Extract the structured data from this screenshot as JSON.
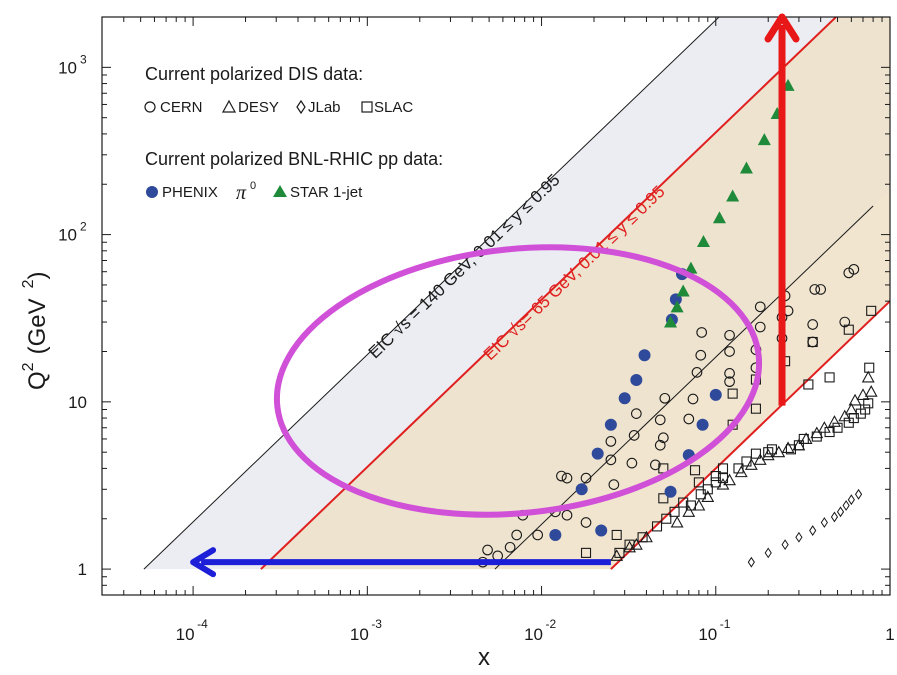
{
  "chart_data": {
    "type": "scatter",
    "xscale": "log",
    "yscale": "log",
    "xlim": [
      3e-05,
      1
    ],
    "ylim": [
      0.7,
      2000
    ],
    "xlabel": "x",
    "ylabel_main": "Q",
    "ylabel_sup": "2",
    "ylabel_unit": "(GeV",
    "ylabel_unit_sup": "2",
    "ylabel_close": ")",
    "x_ticks": [
      {
        "value": 0.0001,
        "base": "10",
        "exp": "-4"
      },
      {
        "value": 0.001,
        "base": "10",
        "exp": "-3"
      },
      {
        "value": 0.01,
        "base": "10",
        "exp": "-2"
      },
      {
        "value": 0.1,
        "base": "10",
        "exp": "-1"
      },
      {
        "value": 1,
        "base": "1",
        "exp": ""
      }
    ],
    "y_ticks": [
      {
        "value": 1,
        "base": "1",
        "exp": ""
      },
      {
        "value": 10,
        "base": "10",
        "exp": ""
      },
      {
        "value": 100,
        "base": "10",
        "exp": "2"
      },
      {
        "value": 1000,
        "base": "10",
        "exp": "3"
      }
    ],
    "legend": {
      "dis_title": "Current polarized DIS data:",
      "dis_items": [
        "CERN",
        "DESY",
        "JLab",
        "SLAC"
      ],
      "rhic_title": "Current polarized BNL-RHIC pp data:",
      "phenix_label": "PHENIX",
      "pi_label": "π",
      "pi_sup": "0",
      "star_label": "STAR 1-jet"
    },
    "bands": [
      {
        "label": "EIC  √s = 140 GeV, 0.01 ≤ y ≤ 0.95",
        "x_left": [
          5.22e-05,
          0.00267
        ],
        "x_right": [
          0.0054,
          0.278
        ],
        "color": "#ebedf2",
        "line": "#1a1a1a"
      },
      {
        "label": "EIC  √s= 65 GeV, 0.01 ≤ y ≤ 0.95",
        "x_left": [
          0.000245,
          0.0125
        ],
        "x_right": [
          0.025,
          1.3
        ],
        "color": "#efe0c8",
        "line": "#e02020"
      }
    ],
    "series": [
      {
        "name": "CERN",
        "marker": "circle",
        "points": [
          [
            0.0046,
            1.1
          ],
          [
            0.0049,
            1.3
          ],
          [
            0.0056,
            1.2
          ],
          [
            0.0066,
            1.35
          ],
          [
            0.0072,
            1.6
          ],
          [
            0.0078,
            2.1
          ],
          [
            0.0095,
            1.6
          ],
          [
            0.012,
            2.2
          ],
          [
            0.013,
            3.6
          ],
          [
            0.014,
            3.5
          ],
          [
            0.014,
            2.1
          ],
          [
            0.018,
            1.9
          ],
          [
            0.018,
            3.5
          ],
          [
            0.025,
            4.5
          ],
          [
            0.025,
            5.8
          ],
          [
            0.026,
            3.2
          ],
          [
            0.033,
            4.3
          ],
          [
            0.034,
            6.3
          ],
          [
            0.035,
            8.5
          ],
          [
            0.045,
            4.2
          ],
          [
            0.048,
            5.5
          ],
          [
            0.048,
            7.8
          ],
          [
            0.05,
            6.1
          ],
          [
            0.051,
            10.5
          ],
          [
            0.07,
            7.9
          ],
          [
            0.074,
            10.4
          ],
          [
            0.078,
            15
          ],
          [
            0.082,
            19
          ],
          [
            0.083,
            26
          ],
          [
            0.12,
            14.8
          ],
          [
            0.12,
            20
          ],
          [
            0.12,
            25
          ],
          [
            0.12,
            13.2
          ],
          [
            0.17,
            16
          ],
          [
            0.17,
            20.5
          ],
          [
            0.18,
            28
          ],
          [
            0.18,
            37
          ],
          [
            0.24,
            24
          ],
          [
            0.24,
            32
          ],
          [
            0.25,
            43
          ],
          [
            0.26,
            35
          ],
          [
            0.36,
            22.8
          ],
          [
            0.36,
            29
          ],
          [
            0.37,
            47
          ],
          [
            0.4,
            47
          ],
          [
            0.55,
            30
          ],
          [
            0.58,
            59
          ],
          [
            0.62,
            62
          ]
        ]
      },
      {
        "name": "DESY",
        "marker": "triangle",
        "points": [
          [
            0.027,
            1.2
          ],
          [
            0.032,
            1.35
          ],
          [
            0.035,
            1.4
          ],
          [
            0.04,
            1.55
          ],
          [
            0.06,
            1.9
          ],
          [
            0.07,
            2.2
          ],
          [
            0.08,
            2.4
          ],
          [
            0.09,
            2.7
          ],
          [
            0.11,
            3.2
          ],
          [
            0.12,
            3.4
          ],
          [
            0.14,
            3.8
          ],
          [
            0.16,
            4.2
          ],
          [
            0.18,
            4.5
          ],
          [
            0.2,
            4.8
          ],
          [
            0.23,
            5.0
          ],
          [
            0.26,
            5.3
          ],
          [
            0.3,
            5.5
          ],
          [
            0.33,
            6.0
          ],
          [
            0.38,
            6.5
          ],
          [
            0.42,
            7.0
          ],
          [
            0.48,
            7.6
          ],
          [
            0.55,
            8.2
          ],
          [
            0.6,
            9.0
          ],
          [
            0.63,
            10.2
          ],
          [
            0.7,
            11.0
          ],
          [
            0.75,
            14.0
          ],
          [
            0.78,
            11.5
          ]
        ]
      },
      {
        "name": "JLab",
        "marker": "diamond",
        "points": [
          [
            0.16,
            1.1
          ],
          [
            0.2,
            1.25
          ],
          [
            0.25,
            1.4
          ],
          [
            0.3,
            1.55
          ],
          [
            0.36,
            1.7
          ],
          [
            0.42,
            1.9
          ],
          [
            0.48,
            2.05
          ],
          [
            0.52,
            2.2
          ],
          [
            0.56,
            2.4
          ],
          [
            0.6,
            2.6
          ],
          [
            0.66,
            2.8
          ]
        ]
      },
      {
        "name": "SLAC",
        "marker": "square",
        "points": [
          [
            0.018,
            1.25
          ],
          [
            0.027,
            1.6
          ],
          [
            0.028,
            1.25
          ],
          [
            0.032,
            1.4
          ],
          [
            0.038,
            1.55
          ],
          [
            0.046,
            1.8
          ],
          [
            0.05,
            2.65
          ],
          [
            0.052,
            2.0
          ],
          [
            0.058,
            2.2
          ],
          [
            0.065,
            2.5
          ],
          [
            0.072,
            2.4
          ],
          [
            0.08,
            3.3
          ],
          [
            0.082,
            2.8
          ],
          [
            0.05,
            4.0
          ],
          [
            0.076,
            3.9
          ],
          [
            0.09,
            3.0
          ],
          [
            0.1,
            3.3
          ],
          [
            0.1,
            3.6
          ],
          [
            0.11,
            3.5
          ],
          [
            0.11,
            4.0
          ],
          [
            0.125,
            7.3
          ],
          [
            0.125,
            11.2
          ],
          [
            0.135,
            4.0
          ],
          [
            0.15,
            4.4
          ],
          [
            0.17,
            4.9
          ],
          [
            0.17,
            9.1
          ],
          [
            0.17,
            13.6
          ],
          [
            0.2,
            5.0
          ],
          [
            0.21,
            5.2
          ],
          [
            0.25,
            17.5
          ],
          [
            0.27,
            5.2
          ],
          [
            0.3,
            5.5
          ],
          [
            0.32,
            6.0
          ],
          [
            0.34,
            12.7
          ],
          [
            0.36,
            22.8
          ],
          [
            0.38,
            6.2
          ],
          [
            0.45,
            6.6
          ],
          [
            0.45,
            14.0
          ],
          [
            0.5,
            7.0
          ],
          [
            0.58,
            7.5
          ],
          [
            0.58,
            27
          ],
          [
            0.62,
            8.0
          ],
          [
            0.68,
            8.5
          ],
          [
            0.72,
            9.0
          ],
          [
            0.75,
            9.8
          ],
          [
            0.76,
            16
          ],
          [
            0.78,
            35
          ]
        ]
      },
      {
        "name": "PHENIX",
        "marker": "filled-circle",
        "color": "#2f4a9a",
        "points": [
          [
            0.012,
            1.6
          ],
          [
            0.022,
            1.7
          ],
          [
            0.017,
            3.0
          ],
          [
            0.021,
            4.9
          ],
          [
            0.025,
            7.3
          ],
          [
            0.03,
            10.5
          ],
          [
            0.035,
            13.5
          ],
          [
            0.039,
            19
          ],
          [
            0.055,
            2.9
          ],
          [
            0.056,
            31
          ],
          [
            0.059,
            41
          ],
          [
            0.064,
            58
          ],
          [
            0.07,
            4.8
          ],
          [
            0.084,
            7.3
          ],
          [
            0.1,
            11
          ]
        ]
      },
      {
        "name": "STAR 1-jet",
        "marker": "filled-triangle",
        "color": "#1e8a3a",
        "points": [
          [
            0.055,
            30
          ],
          [
            0.06,
            37
          ],
          [
            0.065,
            46
          ],
          [
            0.072,
            63
          ],
          [
            0.085,
            91
          ],
          [
            0.105,
            126
          ],
          [
            0.125,
            170
          ],
          [
            0.15,
            250
          ],
          [
            0.19,
            370
          ],
          [
            0.225,
            530
          ],
          [
            0.26,
            780
          ]
        ]
      }
    ],
    "annotations": [
      {
        "type": "arrow",
        "color": "#e81818",
        "from": [
          0.24,
          9.5
        ],
        "to": [
          0.24,
          2000
        ]
      },
      {
        "type": "arrow",
        "color": "#1c1ed8",
        "from": [
          0.025,
          1.1
        ],
        "to": [
          0.0001,
          1.1
        ]
      },
      {
        "type": "ellipse",
        "color": "#d050d8"
      }
    ]
  }
}
